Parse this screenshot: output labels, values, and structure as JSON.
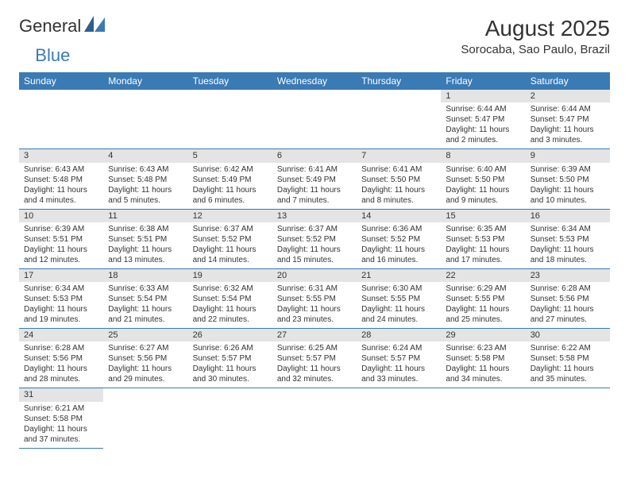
{
  "logo": {
    "text1": "General",
    "text2": "Blue"
  },
  "title": "August 2025",
  "location": "Sorocaba, Sao Paulo, Brazil",
  "colors": {
    "header_bg": "#3a7ab5",
    "header_fg": "#ffffff",
    "daynum_bg": "#e4e4e4",
    "row_border": "#3a7ab5",
    "text": "#333333",
    "background": "#ffffff"
  },
  "daysOfWeek": [
    "Sunday",
    "Monday",
    "Tuesday",
    "Wednesday",
    "Thursday",
    "Friday",
    "Saturday"
  ],
  "weeks": [
    [
      null,
      null,
      null,
      null,
      null,
      {
        "n": "1",
        "sunrise": "6:44 AM",
        "sunset": "5:47 PM",
        "daylight": "11 hours and 2 minutes."
      },
      {
        "n": "2",
        "sunrise": "6:44 AM",
        "sunset": "5:47 PM",
        "daylight": "11 hours and 3 minutes."
      }
    ],
    [
      {
        "n": "3",
        "sunrise": "6:43 AM",
        "sunset": "5:48 PM",
        "daylight": "11 hours and 4 minutes."
      },
      {
        "n": "4",
        "sunrise": "6:43 AM",
        "sunset": "5:48 PM",
        "daylight": "11 hours and 5 minutes."
      },
      {
        "n": "5",
        "sunrise": "6:42 AM",
        "sunset": "5:49 PM",
        "daylight": "11 hours and 6 minutes."
      },
      {
        "n": "6",
        "sunrise": "6:41 AM",
        "sunset": "5:49 PM",
        "daylight": "11 hours and 7 minutes."
      },
      {
        "n": "7",
        "sunrise": "6:41 AM",
        "sunset": "5:50 PM",
        "daylight": "11 hours and 8 minutes."
      },
      {
        "n": "8",
        "sunrise": "6:40 AM",
        "sunset": "5:50 PM",
        "daylight": "11 hours and 9 minutes."
      },
      {
        "n": "9",
        "sunrise": "6:39 AM",
        "sunset": "5:50 PM",
        "daylight": "11 hours and 10 minutes."
      }
    ],
    [
      {
        "n": "10",
        "sunrise": "6:39 AM",
        "sunset": "5:51 PM",
        "daylight": "11 hours and 12 minutes."
      },
      {
        "n": "11",
        "sunrise": "6:38 AM",
        "sunset": "5:51 PM",
        "daylight": "11 hours and 13 minutes."
      },
      {
        "n": "12",
        "sunrise": "6:37 AM",
        "sunset": "5:52 PM",
        "daylight": "11 hours and 14 minutes."
      },
      {
        "n": "13",
        "sunrise": "6:37 AM",
        "sunset": "5:52 PM",
        "daylight": "11 hours and 15 minutes."
      },
      {
        "n": "14",
        "sunrise": "6:36 AM",
        "sunset": "5:52 PM",
        "daylight": "11 hours and 16 minutes."
      },
      {
        "n": "15",
        "sunrise": "6:35 AM",
        "sunset": "5:53 PM",
        "daylight": "11 hours and 17 minutes."
      },
      {
        "n": "16",
        "sunrise": "6:34 AM",
        "sunset": "5:53 PM",
        "daylight": "11 hours and 18 minutes."
      }
    ],
    [
      {
        "n": "17",
        "sunrise": "6:34 AM",
        "sunset": "5:53 PM",
        "daylight": "11 hours and 19 minutes."
      },
      {
        "n": "18",
        "sunrise": "6:33 AM",
        "sunset": "5:54 PM",
        "daylight": "11 hours and 21 minutes."
      },
      {
        "n": "19",
        "sunrise": "6:32 AM",
        "sunset": "5:54 PM",
        "daylight": "11 hours and 22 minutes."
      },
      {
        "n": "20",
        "sunrise": "6:31 AM",
        "sunset": "5:55 PM",
        "daylight": "11 hours and 23 minutes."
      },
      {
        "n": "21",
        "sunrise": "6:30 AM",
        "sunset": "5:55 PM",
        "daylight": "11 hours and 24 minutes."
      },
      {
        "n": "22",
        "sunrise": "6:29 AM",
        "sunset": "5:55 PM",
        "daylight": "11 hours and 25 minutes."
      },
      {
        "n": "23",
        "sunrise": "6:28 AM",
        "sunset": "5:56 PM",
        "daylight": "11 hours and 27 minutes."
      }
    ],
    [
      {
        "n": "24",
        "sunrise": "6:28 AM",
        "sunset": "5:56 PM",
        "daylight": "11 hours and 28 minutes."
      },
      {
        "n": "25",
        "sunrise": "6:27 AM",
        "sunset": "5:56 PM",
        "daylight": "11 hours and 29 minutes."
      },
      {
        "n": "26",
        "sunrise": "6:26 AM",
        "sunset": "5:57 PM",
        "daylight": "11 hours and 30 minutes."
      },
      {
        "n": "27",
        "sunrise": "6:25 AM",
        "sunset": "5:57 PM",
        "daylight": "11 hours and 32 minutes."
      },
      {
        "n": "28",
        "sunrise": "6:24 AM",
        "sunset": "5:57 PM",
        "daylight": "11 hours and 33 minutes."
      },
      {
        "n": "29",
        "sunrise": "6:23 AM",
        "sunset": "5:58 PM",
        "daylight": "11 hours and 34 minutes."
      },
      {
        "n": "30",
        "sunrise": "6:22 AM",
        "sunset": "5:58 PM",
        "daylight": "11 hours and 35 minutes."
      }
    ],
    [
      {
        "n": "31",
        "sunrise": "6:21 AM",
        "sunset": "5:58 PM",
        "daylight": "11 hours and 37 minutes."
      },
      null,
      null,
      null,
      null,
      null,
      null
    ]
  ],
  "labels": {
    "sunrise": "Sunrise:",
    "sunset": "Sunset:",
    "daylight": "Daylight:"
  }
}
